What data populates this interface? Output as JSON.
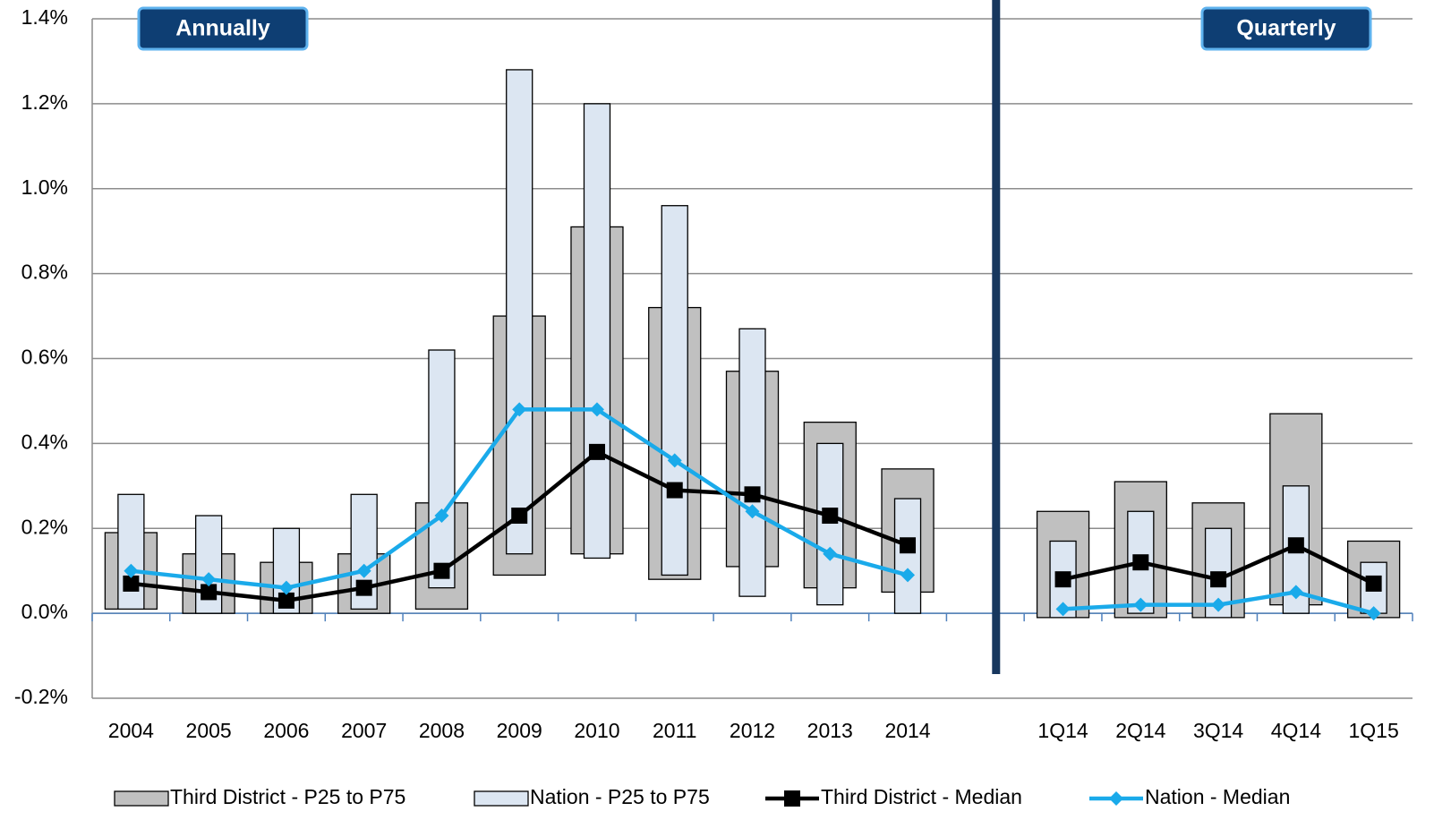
{
  "chart_data": {
    "type": "bar",
    "categories": [
      "2004",
      "2005",
      "2006",
      "2007",
      "2008",
      "2009",
      "2010",
      "2011",
      "2012",
      "2013",
      "2014",
      null,
      "1Q14",
      "2Q14",
      "3Q14",
      "4Q14",
      "1Q15"
    ],
    "annotations": [
      "Annually",
      "Quarterly"
    ],
    "ylim": [
      -0.2,
      1.4
    ],
    "yticks": [
      {
        "value": -0.2,
        "label": "-0.2%"
      },
      {
        "value": 0,
        "label": "0.0%"
      },
      {
        "value": 0.2,
        "label": "0.2%"
      },
      {
        "value": 0.4,
        "label": "0.4%"
      },
      {
        "value": 0.6,
        "label": "0.6%"
      },
      {
        "value": 0.8,
        "label": "0.8%"
      },
      {
        "value": 1.0,
        "label": "1.0%"
      },
      {
        "value": 1.2,
        "label": "1.2%"
      },
      {
        "value": 1.4,
        "label": "1.4%"
      }
    ],
    "grid": true,
    "legend": "bottom",
    "series": [
      {
        "name": "Third District - P25 to P75",
        "type": "range",
        "color": "#c0c0c0",
        "low": [
          0.01,
          0.0,
          0.0,
          0.0,
          0.01,
          0.09,
          0.14,
          0.08,
          0.11,
          0.06,
          0.05,
          null,
          -0.01,
          -0.01,
          -0.01,
          0.02,
          -0.01
        ],
        "high": [
          0.19,
          0.14,
          0.12,
          0.14,
          0.26,
          0.7,
          0.91,
          0.72,
          0.57,
          0.45,
          0.34,
          null,
          0.24,
          0.31,
          0.26,
          0.47,
          0.17
        ]
      },
      {
        "name": "Nation - P25 to P75",
        "type": "range",
        "color": "#dce6f2",
        "low": [
          0.01,
          0.0,
          0.0,
          0.01,
          0.06,
          0.14,
          0.13,
          0.09,
          0.04,
          0.02,
          0.0,
          null,
          -0.01,
          0.0,
          -0.01,
          0.0,
          0.0
        ],
        "high": [
          0.28,
          0.23,
          0.2,
          0.28,
          0.62,
          1.28,
          1.2,
          0.96,
          0.67,
          0.4,
          0.27,
          null,
          0.17,
          0.24,
          0.2,
          0.3,
          0.12
        ]
      },
      {
        "name": "Third District - Median",
        "type": "line",
        "marker": "square",
        "color": "#000000",
        "values": [
          0.07,
          0.05,
          0.03,
          0.06,
          0.1,
          0.23,
          0.38,
          0.29,
          0.28,
          0.23,
          0.16,
          null,
          0.08,
          0.12,
          0.08,
          0.16,
          0.07
        ]
      },
      {
        "name": "Nation - Median",
        "type": "line",
        "marker": "diamond",
        "color": "#1aaaea",
        "values": [
          0.1,
          0.08,
          0.06,
          0.1,
          0.23,
          0.48,
          0.48,
          0.36,
          0.24,
          0.14,
          0.09,
          null,
          0.01,
          0.02,
          0.02,
          0.05,
          0.0
        ]
      }
    ]
  }
}
